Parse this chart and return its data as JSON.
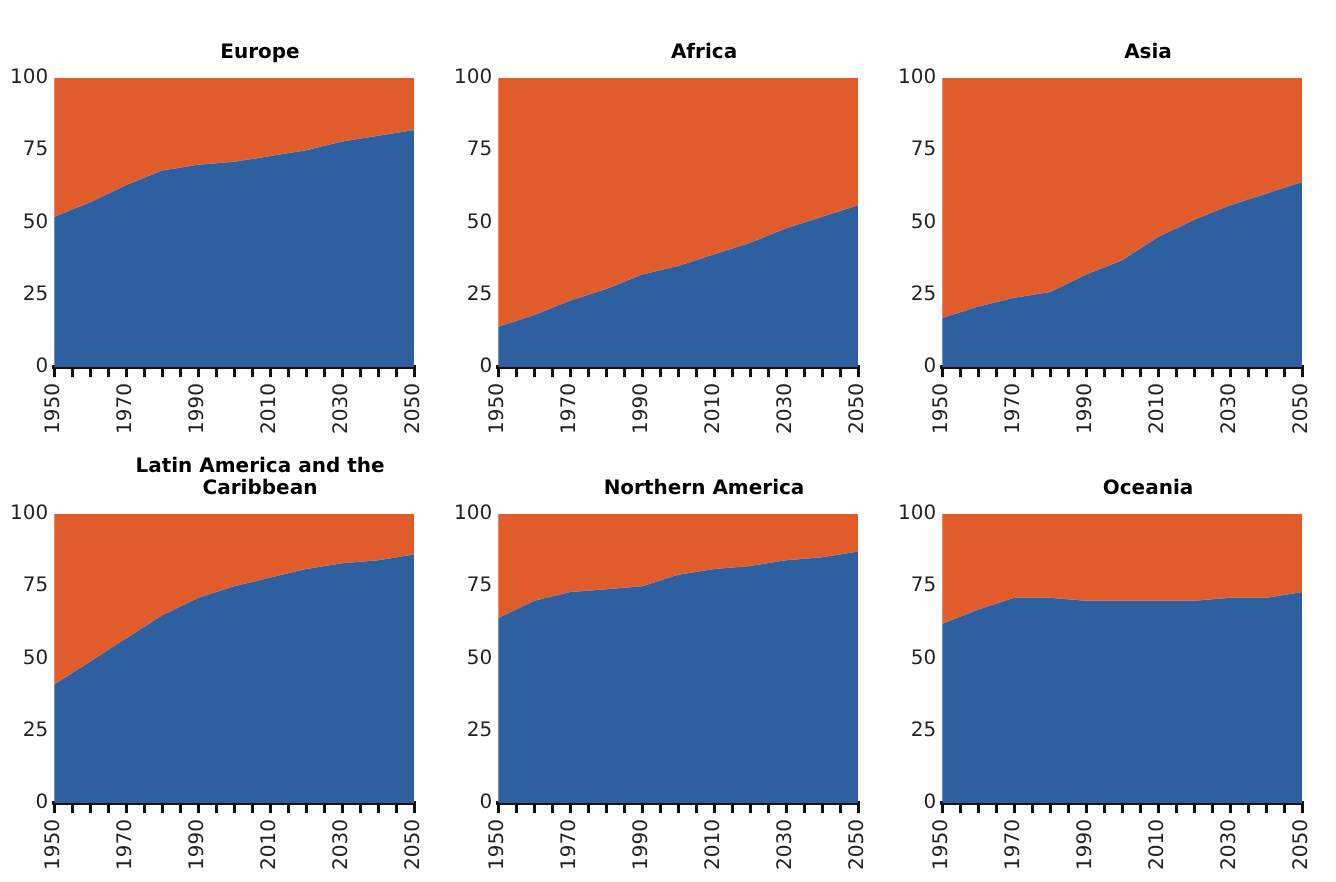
{
  "chart_data": [
    {
      "type": "area",
      "title": "Europe",
      "stacked": true,
      "x": [
        1950,
        1960,
        1970,
        1980,
        1990,
        2000,
        2010,
        2020,
        2030,
        2040,
        2050
      ],
      "series": [
        {
          "color": "#2e5f9e",
          "values": [
            52,
            57,
            63,
            68,
            70,
            71,
            73,
            75,
            78,
            80,
            82
          ]
        },
        {
          "color": "#e05c2a",
          "values": [
            48,
            43,
            37,
            32,
            30,
            29,
            27,
            25,
            22,
            20,
            18
          ]
        }
      ],
      "xlim": [
        1950,
        2050
      ],
      "xticks": [
        1950,
        {
          "value": 1955,
          "label": null
        },
        1970,
        {
          "value": 1960,
          "label": null
        },
        {
          "value": 1965,
          "label": null
        },
        {
          "value": 1975,
          "label": null
        },
        {
          "value": 1980,
          "label": null
        },
        {
          "value": 1985,
          "label": null
        },
        1990,
        {
          "value": 1995,
          "label": null
        },
        {
          "value": 2000,
          "label": null
        },
        {
          "value": 2005,
          "label": null
        },
        2010,
        {
          "value": 2015,
          "label": null
        },
        {
          "value": 2020,
          "label": null
        },
        {
          "value": 2025,
          "label": null
        },
        2030,
        {
          "value": 2035,
          "label": null
        },
        {
          "value": 2040,
          "label": null
        },
        {
          "value": 2045,
          "label": null
        },
        2050
      ],
      "ylim": [
        0,
        100
      ],
      "yticks": [
        0,
        25,
        50,
        75,
        100
      ]
    },
    {
      "type": "area",
      "title": "Africa",
      "stacked": true,
      "x": [
        1950,
        1960,
        1970,
        1980,
        1990,
        2000,
        2010,
        2020,
        2030,
        2040,
        2050
      ],
      "series": [
        {
          "color": "#2e5f9e",
          "values": [
            14,
            18,
            23,
            27,
            32,
            35,
            39,
            43,
            48,
            52,
            56
          ]
        },
        {
          "color": "#e05c2a",
          "values": [
            86,
            82,
            77,
            73,
            68,
            65,
            61,
            57,
            52,
            48,
            44
          ]
        }
      ],
      "xlim": [
        1950,
        2050
      ],
      "xticks": [
        1950,
        {
          "value": 1955,
          "label": null
        },
        1970,
        {
          "value": 1960,
          "label": null
        },
        {
          "value": 1965,
          "label": null
        },
        {
          "value": 1975,
          "label": null
        },
        {
          "value": 1980,
          "label": null
        },
        {
          "value": 1985,
          "label": null
        },
        1990,
        {
          "value": 1995,
          "label": null
        },
        {
          "value": 2000,
          "label": null
        },
        {
          "value": 2005,
          "label": null
        },
        2010,
        {
          "value": 2015,
          "label": null
        },
        {
          "value": 2020,
          "label": null
        },
        {
          "value": 2025,
          "label": null
        },
        2030,
        {
          "value": 2035,
          "label": null
        },
        {
          "value": 2040,
          "label": null
        },
        {
          "value": 2045,
          "label": null
        },
        2050
      ],
      "ylim": [
        0,
        100
      ],
      "yticks": [
        0,
        25,
        50,
        75,
        100
      ]
    },
    {
      "type": "area",
      "title": "Asia",
      "stacked": true,
      "x": [
        1950,
        1960,
        1970,
        1980,
        1990,
        2000,
        2010,
        2020,
        2030,
        2040,
        2050
      ],
      "series": [
        {
          "color": "#2e5f9e",
          "values": [
            17,
            21,
            24,
            26,
            32,
            37,
            45,
            51,
            56,
            60,
            64
          ]
        },
        {
          "color": "#e05c2a",
          "values": [
            83,
            79,
            76,
            74,
            68,
            63,
            55,
            49,
            44,
            40,
            36
          ]
        }
      ],
      "xlim": [
        1950,
        2050
      ],
      "xticks": [
        1950,
        {
          "value": 1955,
          "label": null
        },
        1970,
        {
          "value": 1960,
          "label": null
        },
        {
          "value": 1965,
          "label": null
        },
        {
          "value": 1975,
          "label": null
        },
        {
          "value": 1980,
          "label": null
        },
        {
          "value": 1985,
          "label": null
        },
        1990,
        {
          "value": 1995,
          "label": null
        },
        {
          "value": 2000,
          "label": null
        },
        {
          "value": 2005,
          "label": null
        },
        2010,
        {
          "value": 2015,
          "label": null
        },
        {
          "value": 2020,
          "label": null
        },
        {
          "value": 2025,
          "label": null
        },
        2030,
        {
          "value": 2035,
          "label": null
        },
        {
          "value": 2040,
          "label": null
        },
        {
          "value": 2045,
          "label": null
        },
        2050
      ],
      "ylim": [
        0,
        100
      ],
      "yticks": [
        0,
        25,
        50,
        75,
        100
      ]
    },
    {
      "type": "area",
      "title": "Latin America and the Caribbean",
      "stacked": true,
      "x": [
        1950,
        1960,
        1970,
        1980,
        1990,
        2000,
        2010,
        2020,
        2030,
        2040,
        2050
      ],
      "series": [
        {
          "color": "#2e5f9e",
          "values": [
            41,
            49,
            57,
            65,
            71,
            75,
            78,
            81,
            83,
            84,
            86
          ]
        },
        {
          "color": "#e05c2a",
          "values": [
            59,
            51,
            43,
            35,
            29,
            25,
            22,
            19,
            17,
            16,
            14
          ]
        }
      ],
      "xlim": [
        1950,
        2050
      ],
      "xticks": [
        1950,
        {
          "value": 1955,
          "label": null
        },
        1970,
        {
          "value": 1960,
          "label": null
        },
        {
          "value": 1965,
          "label": null
        },
        {
          "value": 1975,
          "label": null
        },
        {
          "value": 1980,
          "label": null
        },
        {
          "value": 1985,
          "label": null
        },
        1990,
        {
          "value": 1995,
          "label": null
        },
        {
          "value": 2000,
          "label": null
        },
        {
          "value": 2005,
          "label": null
        },
        2010,
        {
          "value": 2015,
          "label": null
        },
        {
          "value": 2020,
          "label": null
        },
        {
          "value": 2025,
          "label": null
        },
        2030,
        {
          "value": 2035,
          "label": null
        },
        {
          "value": 2040,
          "label": null
        },
        {
          "value": 2045,
          "label": null
        },
        2050
      ],
      "ylim": [
        0,
        100
      ],
      "yticks": [
        0,
        25,
        50,
        75,
        100
      ]
    },
    {
      "type": "area",
      "title": "Northern America",
      "stacked": true,
      "x": [
        1950,
        1960,
        1970,
        1980,
        1990,
        2000,
        2010,
        2020,
        2030,
        2040,
        2050
      ],
      "series": [
        {
          "color": "#2e5f9e",
          "values": [
            64,
            70,
            73,
            74,
            75,
            79,
            81,
            82,
            84,
            85,
            87
          ]
        },
        {
          "color": "#e05c2a",
          "values": [
            36,
            30,
            27,
            26,
            25,
            21,
            19,
            18,
            16,
            15,
            13
          ]
        }
      ],
      "xlim": [
        1950,
        2050
      ],
      "xticks": [
        1950,
        {
          "value": 1955,
          "label": null
        },
        1970,
        {
          "value": 1960,
          "label": null
        },
        {
          "value": 1965,
          "label": null
        },
        {
          "value": 1975,
          "label": null
        },
        {
          "value": 1980,
          "label": null
        },
        {
          "value": 1985,
          "label": null
        },
        1990,
        {
          "value": 1995,
          "label": null
        },
        {
          "value": 2000,
          "label": null
        },
        {
          "value": 2005,
          "label": null
        },
        2010,
        {
          "value": 2015,
          "label": null
        },
        {
          "value": 2020,
          "label": null
        },
        {
          "value": 2025,
          "label": null
        },
        2030,
        {
          "value": 2035,
          "label": null
        },
        {
          "value": 2040,
          "label": null
        },
        {
          "value": 2045,
          "label": null
        },
        2050
      ],
      "ylim": [
        0,
        100
      ],
      "yticks": [
        0,
        25,
        50,
        75,
        100
      ]
    },
    {
      "type": "area",
      "title": "Oceania",
      "stacked": true,
      "x": [
        1950,
        1960,
        1970,
        1980,
        1990,
        2000,
        2010,
        2020,
        2030,
        2040,
        2050
      ],
      "series": [
        {
          "color": "#2e5f9e",
          "values": [
            62,
            67,
            71,
            71,
            70,
            70,
            70,
            70,
            71,
            71,
            73
          ]
        },
        {
          "color": "#e05c2a",
          "values": [
            38,
            33,
            29,
            29,
            30,
            30,
            30,
            30,
            29,
            29,
            27
          ]
        }
      ],
      "xlim": [
        1950,
        2050
      ],
      "xticks": [
        1950,
        {
          "value": 1955,
          "label": null
        },
        1970,
        {
          "value": 1960,
          "label": null
        },
        {
          "value": 1965,
          "label": null
        },
        {
          "value": 1975,
          "label": null
        },
        {
          "value": 1980,
          "label": null
        },
        {
          "value": 1985,
          "label": null
        },
        1990,
        {
          "value": 1995,
          "label": null
        },
        {
          "value": 2000,
          "label": null
        },
        {
          "value": 2005,
          "label": null
        },
        2010,
        {
          "value": 2015,
          "label": null
        },
        {
          "value": 2020,
          "label": null
        },
        {
          "value": 2025,
          "label": null
        },
        2030,
        {
          "value": 2035,
          "label": null
        },
        {
          "value": 2040,
          "label": null
        },
        {
          "value": 2045,
          "label": null
        },
        2050
      ],
      "ylim": [
        0,
        100
      ],
      "yticks": [
        0,
        25,
        50,
        75,
        100
      ]
    }
  ]
}
